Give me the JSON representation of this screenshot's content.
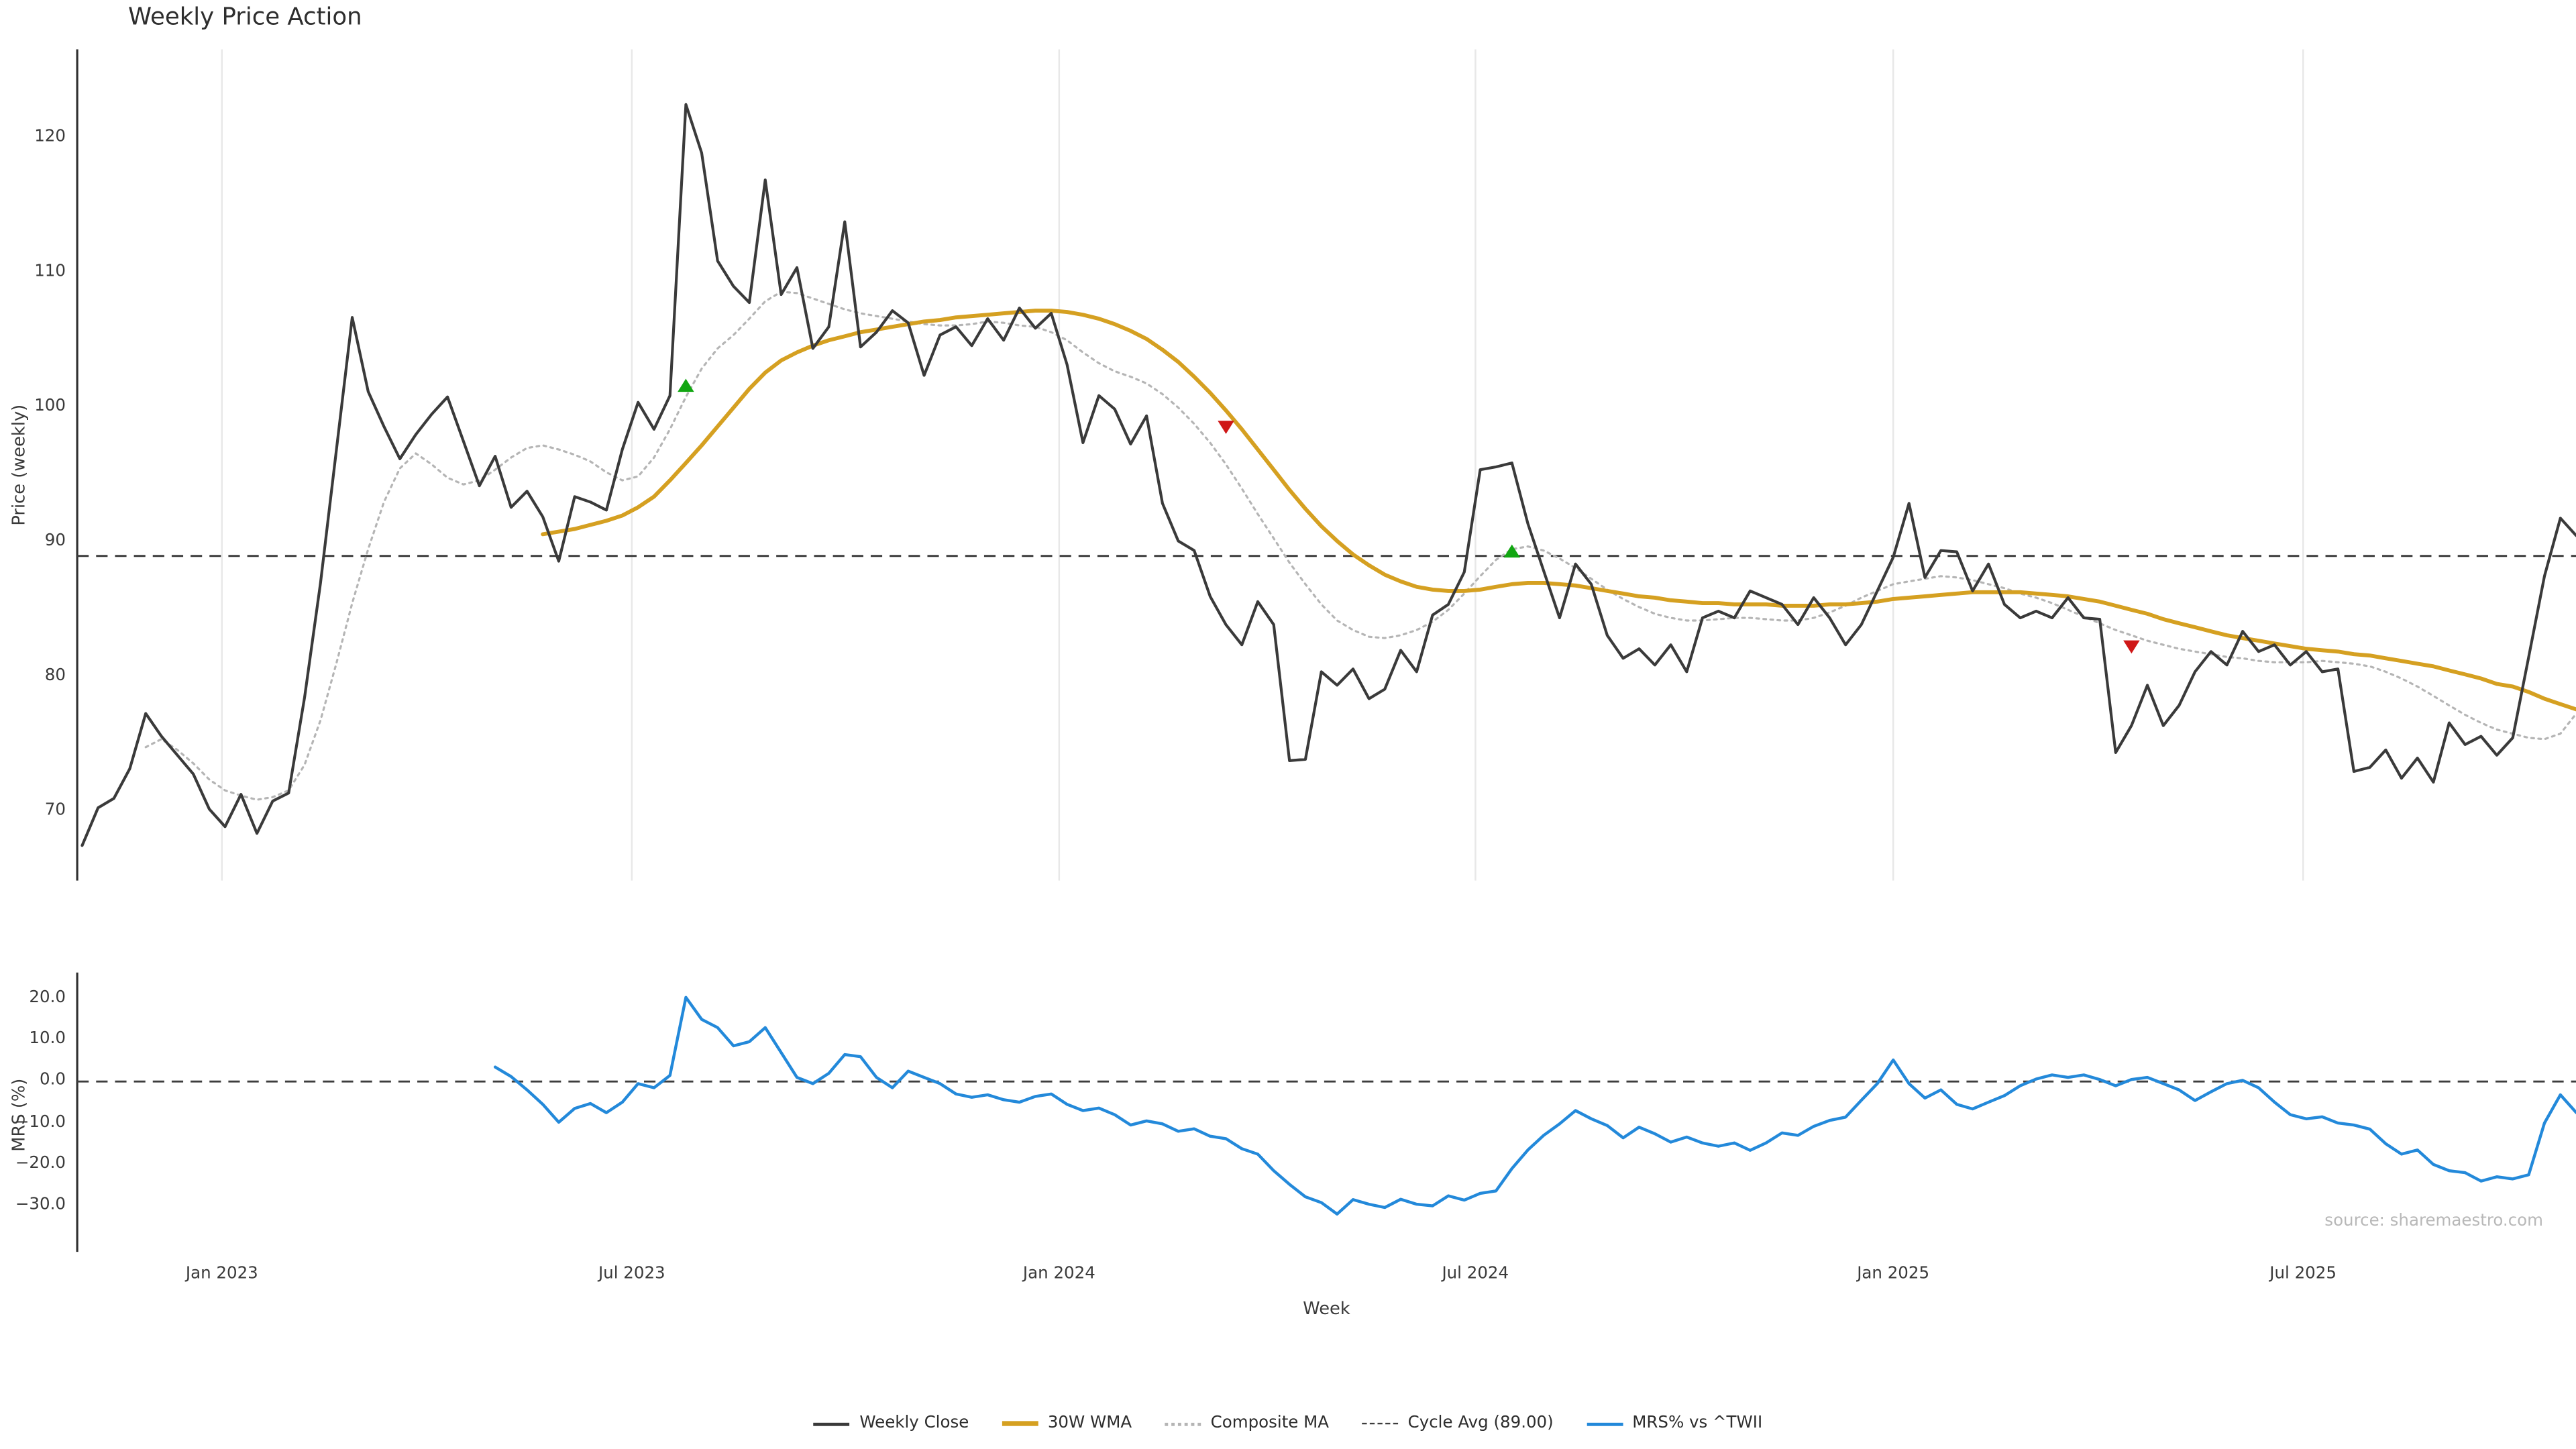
{
  "title": "Weekly Price Action",
  "source": "source: sharemaestro.com",
  "axes": {
    "price_ylabel": "Price (weekly)",
    "mrs_ylabel": "MRS (%)",
    "xlabel": "Week"
  },
  "colors": {
    "close": "#3a3a3a",
    "wma": "#d5a021",
    "composite": "#b5b5b5",
    "cycle": "#3d3d3d",
    "mrs": "#2389da",
    "buy": "#11a611",
    "sell": "#cf1717",
    "grid": "#e8e8e8",
    "spine": "#303030"
  },
  "legend": {
    "items": [
      {
        "label": "Weekly Close",
        "color": "#3a3a3a",
        "style": "solid"
      },
      {
        "label": "30W WMA",
        "color": "#d5a021",
        "style": "solid"
      },
      {
        "label": "Composite MA",
        "color": "#b5b5b5",
        "style": "dotted"
      },
      {
        "label": "Cycle Avg (89.00)",
        "color": "#3d3d3d",
        "style": "dashed"
      },
      {
        "label": "MRS% vs ^TWII",
        "color": "#2389da",
        "style": "solid"
      }
    ]
  },
  "chart_data": {
    "type": "line",
    "x_unit": "weekly, Nov 2022 - Nov 2025",
    "x_ticks": {
      "weeks": [
        8.8,
        34.6,
        61.5,
        87.7,
        114.0,
        139.8
      ],
      "labels": [
        "Jan 2023",
        "Jul 2023",
        "Jan 2024",
        "Jul 2024",
        "Jan 2025",
        "Jul 2025"
      ]
    },
    "panels": [
      {
        "name": "price",
        "ylabel": "Price (weekly)",
        "ylim": [
          64.9,
          126.6
        ],
        "yticks": [
          70,
          80,
          90,
          100,
          110,
          120
        ],
        "ytick_labels": [
          "70",
          "80",
          "90",
          "100",
          "110",
          "120"
        ],
        "cycle_avg": 89.0,
        "series": [
          {
            "name": "Composite MA",
            "role": "composite",
            "color": "#b5b5b5",
            "style": "dotted",
            "start_week": 4,
            "values": [
              74.8,
              75.4,
              74.6,
              73.6,
              72.4,
              71.6,
              71.2,
              70.9,
              71.1,
              71.6,
              73.5,
              76.8,
              81.0,
              85.5,
              89.5,
              93.0,
              95.5,
              96.6,
              95.8,
              94.8,
              94.3,
              94.6,
              95.4,
              96.3,
              97.0,
              97.2,
              96.9,
              96.5,
              96.0,
              95.2,
              94.6,
              94.9,
              96.3,
              98.4,
              100.8,
              102.9,
              104.4,
              105.4,
              106.6,
              107.9,
              108.6,
              108.5,
              108.1,
              107.7,
              107.3,
              107.0,
              106.8,
              106.6,
              106.4,
              106.2,
              106.1,
              106.1,
              106.2,
              106.4,
              106.3,
              106.1,
              106.0,
              105.6,
              105.0,
              104.1,
              103.3,
              102.7,
              102.3,
              101.8,
              101.0,
              100.0,
              98.8,
              97.4,
              95.8,
              94.0,
              92.1,
              90.3,
              88.5,
              86.9,
              85.4,
              84.2,
              83.5,
              83.0,
              82.9,
              83.1,
              83.5,
              84.1,
              85.0,
              86.2,
              87.5,
              88.7,
              89.5,
              89.7,
              89.4,
              88.8,
              88.1,
              87.3,
              86.5,
              85.8,
              85.2,
              84.7,
              84.4,
              84.2,
              84.2,
              84.3,
              84.4,
              84.4,
              84.3,
              84.2,
              84.2,
              84.4,
              84.8,
              85.3,
              85.9,
              86.4,
              86.9,
              87.1,
              87.3,
              87.5,
              87.4,
              87.2,
              86.9,
              86.6,
              86.2,
              85.9,
              85.5,
              85.0,
              84.5,
              84.0,
              83.5,
              83.1,
              82.7,
              82.4,
              82.1,
              81.9,
              81.7,
              81.5,
              81.4,
              81.2,
              81.1,
              81.1,
              81.1,
              81.2,
              81.1,
              81.0,
              80.8,
              80.4,
              79.9,
              79.3,
              78.6,
              77.9,
              77.2,
              76.6,
              76.1,
              75.8,
              75.5,
              75.4,
              75.8,
              77.3
            ]
          },
          {
            "name": "30W WMA",
            "role": "wma",
            "color": "#d5a021",
            "style": "solid",
            "start_week": 29,
            "values": [
              90.6,
              90.8,
              91.0,
              91.3,
              91.6,
              92.0,
              92.6,
              93.4,
              94.6,
              95.9,
              97.2,
              98.6,
              100.0,
              101.4,
              102.6,
              103.5,
              104.1,
              104.6,
              105.0,
              105.3,
              105.6,
              105.8,
              106.0,
              106.2,
              106.4,
              106.5,
              106.7,
              106.8,
              106.9,
              107.0,
              107.1,
              107.2,
              107.2,
              107.1,
              106.9,
              106.6,
              106.2,
              105.7,
              105.1,
              104.3,
              103.4,
              102.3,
              101.1,
              99.8,
              98.4,
              96.9,
              95.4,
              93.9,
              92.5,
              91.2,
              90.1,
              89.1,
              88.3,
              87.6,
              87.1,
              86.7,
              86.5,
              86.4,
              86.4,
              86.5,
              86.7,
              86.9,
              87.0,
              87.0,
              86.9,
              86.8,
              86.6,
              86.4,
              86.2,
              86.0,
              85.9,
              85.7,
              85.6,
              85.5,
              85.5,
              85.4,
              85.4,
              85.4,
              85.3,
              85.3,
              85.3,
              85.4,
              85.4,
              85.5,
              85.6,
              85.8,
              85.9,
              86.0,
              86.1,
              86.2,
              86.3,
              86.3,
              86.3,
              86.3,
              86.2,
              86.1,
              86.0,
              85.8,
              85.6,
              85.3,
              85.0,
              84.7,
              84.3,
              84.0,
              83.7,
              83.4,
              83.1,
              82.9,
              82.7,
              82.5,
              82.3,
              82.1,
              82.0,
              81.9,
              81.7,
              81.6,
              81.4,
              81.2,
              81.0,
              80.8,
              80.5,
              80.2,
              79.9,
              79.5,
              79.3,
              78.9,
              78.4,
              78.0,
              77.6,
              77.3,
              77.1,
              77.0,
              77.3
            ]
          },
          {
            "name": "Weekly Close",
            "role": "close",
            "color": "#3a3a3a",
            "style": "solid",
            "start_week": 0,
            "values": [
              67.5,
              70.3,
              71.0,
              73.2,
              77.3,
              75.6,
              74.2,
              72.8,
              70.2,
              68.9,
              71.3,
              68.4,
              70.8,
              71.4,
              78.5,
              87.0,
              96.8,
              106.7,
              101.2,
              98.6,
              96.2,
              98.0,
              99.5,
              100.8,
              97.5,
              94.2,
              96.4,
              92.6,
              93.8,
              91.9,
              88.6,
              93.4,
              93.0,
              92.4,
              96.9,
              100.4,
              98.4,
              100.9,
              122.5,
              118.9,
              110.9,
              109.0,
              107.8,
              116.9,
              108.4,
              110.4,
              104.4,
              106.0,
              113.8,
              104.5,
              105.6,
              107.2,
              106.3,
              102.4,
              105.4,
              106.0,
              104.6,
              106.6,
              105.0,
              107.4,
              105.9,
              107.0,
              103.2,
              97.4,
              100.9,
              99.9,
              97.3,
              99.4,
              92.9,
              90.1,
              89.4,
              86.0,
              83.9,
              82.4,
              85.6,
              83.9,
              73.8,
              73.9,
              80.4,
              79.4,
              80.6,
              78.4,
              79.1,
              82.0,
              80.4,
              84.6,
              85.4,
              87.8,
              95.4,
              95.6,
              95.9,
              91.4,
              87.9,
              84.4,
              88.4,
              86.9,
              83.1,
              81.4,
              82.1,
              80.9,
              82.4,
              80.4,
              84.4,
              84.9,
              84.4,
              86.4,
              85.9,
              85.4,
              83.9,
              85.9,
              84.4,
              82.4,
              83.9,
              86.4,
              88.9,
              92.9,
              87.4,
              89.4,
              89.3,
              86.4,
              88.4,
              85.4,
              84.4,
              84.9,
              84.4,
              85.9,
              84.4,
              84.3,
              74.4,
              76.4,
              79.4,
              76.4,
              77.9,
              80.4,
              81.9,
              80.9,
              83.4,
              81.9,
              82.4,
              80.9,
              81.9,
              80.4,
              80.6,
              73.0,
              73.3,
              74.6,
              72.5,
              74.0,
              72.2,
              76.6,
              75.0,
              75.6,
              74.2,
              75.5,
              81.5,
              87.5,
              91.8,
              90.5
            ]
          }
        ],
        "markers": {
          "buy": [
            {
              "week": 38,
              "price": 101.6
            },
            {
              "week": 90,
              "price": 89.3
            }
          ],
          "sell": [
            {
              "week": 72,
              "price": 98.6
            },
            {
              "week": 129,
              "price": 82.3
            }
          ]
        }
      },
      {
        "name": "mrs",
        "ylabel": "MRS (%)",
        "ylim": [
          -41.1,
          26.3
        ],
        "yticks": [
          -30,
          -20,
          -10,
          0,
          10,
          20
        ],
        "ytick_labels": [
          "−30.0",
          "−20.0",
          "−10.0",
          "0.0",
          "10.0",
          "20.0"
        ],
        "zero_line": 0.0,
        "series": [
          {
            "name": "MRS% vs ^TWII",
            "role": "mrs",
            "color": "#2389da",
            "style": "solid",
            "start_week": 26,
            "values": [
              3.5,
              1.2,
              -2.0,
              -5.5,
              -9.8,
              -6.5,
              -5.3,
              -7.5,
              -5.0,
              -0.5,
              -1.5,
              1.5,
              20.3,
              15.0,
              13.0,
              8.6,
              9.6,
              13.0,
              7.0,
              1.0,
              -0.5,
              2.0,
              6.5,
              6.0,
              1.0,
              -1.5,
              2.5,
              1.0,
              -0.5,
              -3.0,
              -3.8,
              -3.2,
              -4.4,
              -5.0,
              -3.6,
              -3.0,
              -5.5,
              -7.0,
              -6.4,
              -8.0,
              -10.5,
              -9.5,
              -10.2,
              -12.0,
              -11.4,
              -13.2,
              -13.8,
              -16.2,
              -17.5,
              -21.5,
              -24.8,
              -27.8,
              -29.2,
              -32.0,
              -28.5,
              -29.6,
              -30.4,
              -28.4,
              -29.6,
              -30.0,
              -27.6,
              -28.6,
              -27.0,
              -26.4,
              -21.0,
              -16.5,
              -13.0,
              -10.2,
              -7.0,
              -9.0,
              -10.6,
              -13.6,
              -11.0,
              -12.6,
              -14.6,
              -13.4,
              -14.8,
              -15.6,
              -14.8,
              -16.6,
              -14.8,
              -12.4,
              -13.0,
              -10.8,
              -9.4,
              -8.6,
              -4.5,
              -0.5,
              5.2,
              -0.5,
              -4.0,
              -2.0,
              -5.5,
              -6.6,
              -5.0,
              -3.4,
              -1.0,
              0.6,
              1.6,
              1.0,
              1.6,
              0.5,
              -1.0,
              0.5,
              1.0,
              -0.5,
              -2.0,
              -4.6,
              -2.5,
              -0.5,
              0.3,
              -1.5,
              -5.0,
              -8.0,
              -9.0,
              -8.5,
              -10.0,
              -10.5,
              -11.5,
              -15.0,
              -17.5,
              -16.5,
              -20.0,
              -21.5,
              -22.0,
              -24.0,
              -23.0,
              -23.5,
              -22.5,
              -10.0,
              -3.2,
              -7.5
            ]
          }
        ]
      }
    ]
  }
}
